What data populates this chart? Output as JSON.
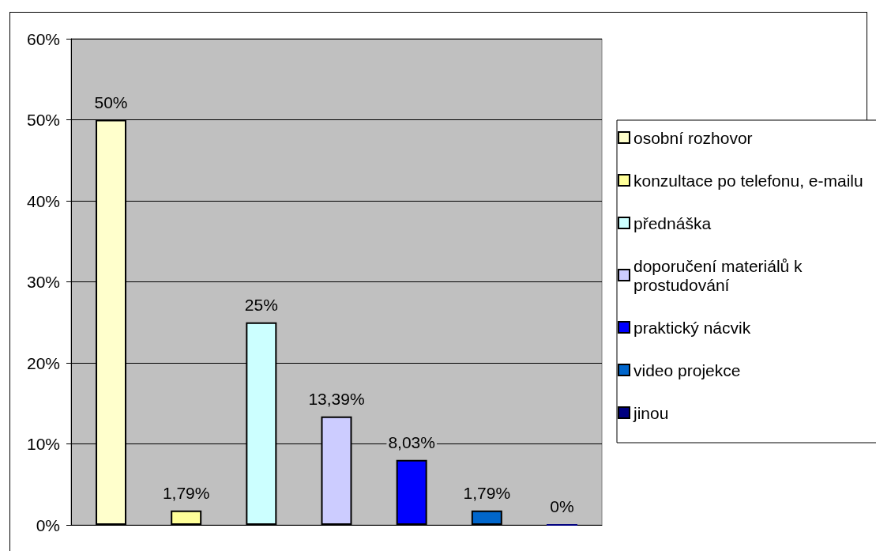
{
  "chart_data": {
    "type": "bar",
    "categories": [
      null
    ],
    "series": [
      {
        "name": "osobní rozhovor",
        "color": "#ffffcc",
        "values": [
          50
        ],
        "value_labels": [
          "50%"
        ]
      },
      {
        "name": "konzultace po telefonu, e-mailu",
        "color": "#ffff99",
        "values": [
          1.79
        ],
        "value_labels": [
          "1,79%"
        ]
      },
      {
        "name": "přednáška",
        "color": "#ccffff",
        "values": [
          25
        ],
        "value_labels": [
          "25%"
        ]
      },
      {
        "name": "doporučení materiálů k prostudování",
        "color": "#ccccff",
        "values": [
          13.39
        ],
        "value_labels": [
          "13,39%"
        ]
      },
      {
        "name": "praktický nácvik",
        "color": "#0000ff",
        "values": [
          8.03
        ],
        "value_labels": [
          "8,03%"
        ]
      },
      {
        "name": "video projekce",
        "color": "#0066cc",
        "values": [
          1.79
        ],
        "value_labels": [
          "1,79%"
        ]
      },
      {
        "name": "jinou",
        "color": "#000080",
        "values": [
          0
        ],
        "value_labels": [
          "0%"
        ]
      }
    ],
    "ylim": [
      0,
      60
    ],
    "yticks": [
      {
        "value": 0,
        "label": "0%"
      },
      {
        "value": 10,
        "label": "10%"
      },
      {
        "value": 20,
        "label": "20%"
      },
      {
        "value": 30,
        "label": "30%"
      },
      {
        "value": 40,
        "label": "40%"
      },
      {
        "value": 50,
        "label": "50%"
      },
      {
        "value": 60,
        "label": "60%"
      }
    ],
    "grid": "y",
    "legend": "right"
  }
}
